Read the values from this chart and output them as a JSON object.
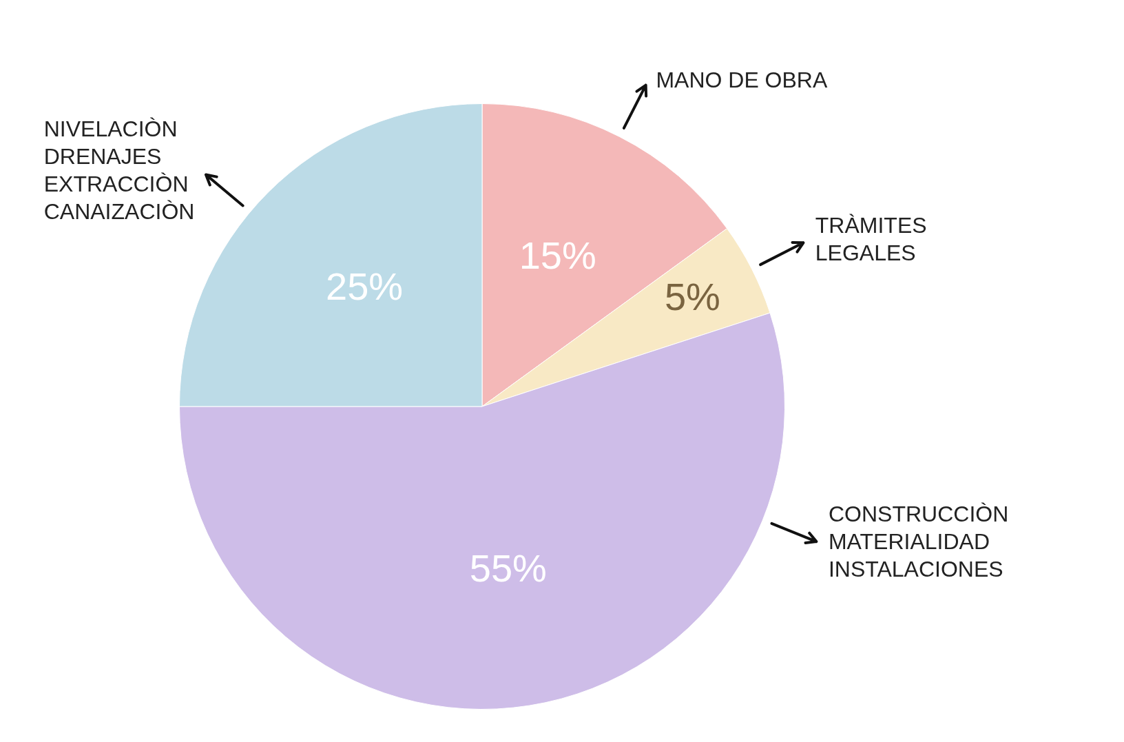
{
  "chart_data": {
    "type": "pie",
    "categories": [
      "MANO DE OBRA",
      "TRÀMITES\nLEGALES",
      "CONSTRUCCIÒN\nMATERIALIDAD\nINSTALACIONES",
      "NIVELACIÒN\nDRENAJES\nEXTRACCIÒN\nCANAIZACIÒN"
    ],
    "values": [
      15,
      5,
      55,
      25
    ],
    "value_labels": [
      "15%",
      "5%",
      "55%",
      "25%"
    ],
    "colors": [
      "#f4b8b8",
      "#f8e9c5",
      "#cebde8",
      "#bcdbe7"
    ],
    "legend": false
  }
}
